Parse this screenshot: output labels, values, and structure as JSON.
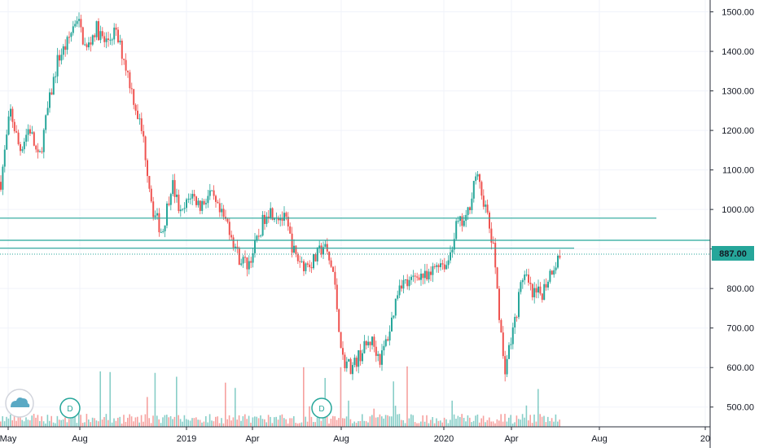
{
  "chart_data": {
    "type": "candlestick",
    "price_axis": {
      "ticks": [
        "500.00",
        "600.00",
        "700.00",
        "800.00",
        "900.00",
        "1000.00",
        "1100.00",
        "1200.00",
        "1300.00",
        "1400.00",
        "1500.00"
      ],
      "range": [
        450,
        1530
      ]
    },
    "time_axis": {
      "ticks": [
        "May",
        "Aug",
        "2019",
        "Apr",
        "Aug",
        "2020",
        "Apr",
        "Aug",
        "20"
      ]
    },
    "current_price": "887.00",
    "colors": {
      "up": "#26a69a",
      "down": "#ef5350",
      "line": "#26a69a",
      "grid": "#f0f3fa"
    },
    "horizontal_levels": [
      978,
      922,
      902,
      887
    ],
    "price_path": [
      [
        0,
        1070
      ],
      [
        1,
        1250
      ],
      [
        2,
        1150
      ],
      [
        3,
        1210
      ],
      [
        4,
        1120
      ],
      [
        5,
        1260
      ],
      [
        6,
        1380
      ],
      [
        7,
        1420
      ],
      [
        8,
        1490
      ],
      [
        9,
        1400
      ],
      [
        10,
        1460
      ],
      [
        11,
        1420
      ],
      [
        12,
        1450
      ],
      [
        13,
        1380
      ],
      [
        14,
        1280
      ],
      [
        15,
        1180
      ],
      [
        16,
        1000
      ],
      [
        17,
        940
      ],
      [
        18,
        1070
      ],
      [
        19,
        980
      ],
      [
        20,
        1040
      ],
      [
        21,
        1010
      ],
      [
        22,
        1040
      ],
      [
        23,
        990
      ],
      [
        24,
        960
      ],
      [
        25,
        880
      ],
      [
        26,
        860
      ],
      [
        27,
        920
      ],
      [
        28,
        1000
      ],
      [
        29,
        990
      ],
      [
        30,
        970
      ],
      [
        31,
        880
      ],
      [
        32,
        860
      ],
      [
        33,
        870
      ],
      [
        34,
        910
      ],
      [
        35,
        840
      ],
      [
        36,
        620
      ],
      [
        37,
        600
      ],
      [
        38,
        640
      ],
      [
        39,
        670
      ],
      [
        40,
        620
      ],
      [
        41,
        700
      ],
      [
        42,
        820
      ],
      [
        43,
        810
      ],
      [
        44,
        840
      ],
      [
        45,
        820
      ],
      [
        46,
        870
      ],
      [
        47,
        860
      ],
      [
        48,
        960
      ],
      [
        49,
        970
      ],
      [
        50,
        1090
      ],
      [
        51,
        1010
      ],
      [
        52,
        880
      ],
      [
        53,
        590
      ],
      [
        54,
        700
      ],
      [
        55,
        840
      ],
      [
        56,
        780
      ],
      [
        57,
        790
      ],
      [
        58,
        850
      ],
      [
        59,
        887
      ]
    ],
    "volume_markers": [
      "D",
      "D"
    ]
  }
}
